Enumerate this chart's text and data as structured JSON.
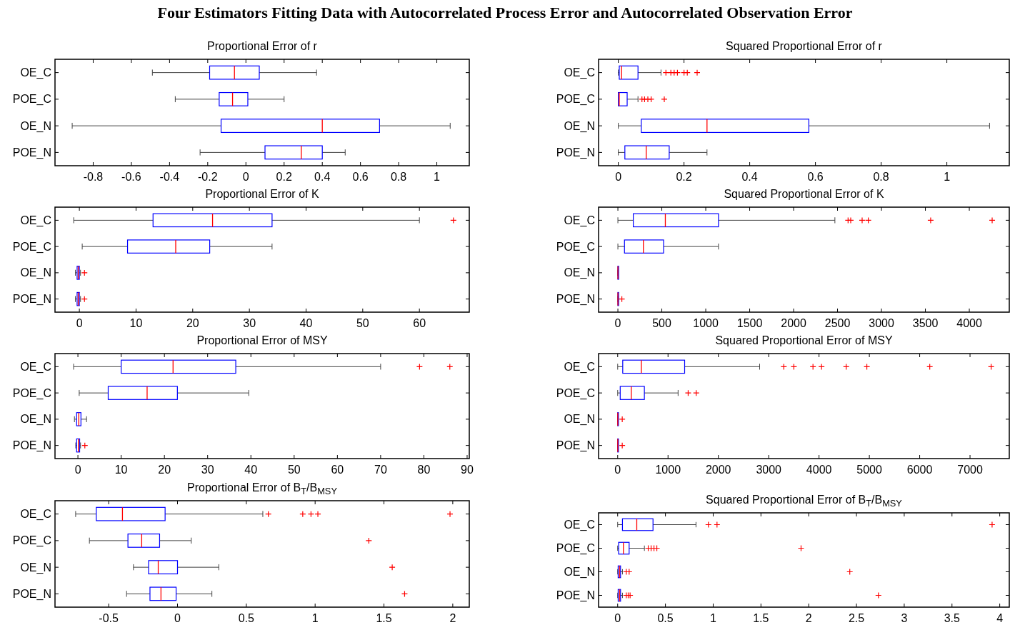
{
  "chart_data": [
    {
      "type": "box",
      "title": "Proportional Error of r",
      "annotations": [
        "Four Estimators Fitting Data with Autocorrelated Process Error and Autocorrelated Observation Error"
      ],
      "orientation": "horizontal",
      "categories": [
        "OE_C",
        "POE_C",
        "OE_N",
        "POE_N"
      ],
      "color": "#0000ff",
      "marker": "cross",
      "xlim": [
        -1.0,
        1.17
      ],
      "xticks": [
        -0.8,
        -0.6,
        -0.4,
        -0.2,
        0,
        0.2,
        0.4,
        0.6,
        0.8,
        1
      ],
      "boxes": [
        {
          "low": -0.49,
          "q1": -0.19,
          "median": -0.06,
          "q3": 0.07,
          "high": 0.37
        },
        {
          "low": -0.37,
          "q1": -0.14,
          "median": -0.07,
          "q3": 0.01,
          "high": 0.2
        },
        {
          "low": -0.91,
          "q1": -0.13,
          "median": 0.4,
          "q3": 0.7,
          "high": 1.07
        },
        {
          "low": -0.24,
          "q1": 0.1,
          "median": 0.29,
          "q3": 0.4,
          "high": 0.52
        }
      ]
    },
    {
      "type": "box",
      "title": "Squared Proportional Error of r",
      "orientation": "horizontal",
      "categories": [
        "OE_C",
        "POE_C",
        "OE_N",
        "POE_N"
      ],
      "color": "#0000ff",
      "marker": "cross",
      "xlim": [
        -0.06,
        1.19
      ],
      "xticks": [
        0,
        0.2,
        0.4,
        0.6,
        0.8,
        1
      ],
      "boxes": [
        {
          "low": 0,
          "q1": 0.003,
          "median": 0.01,
          "q3": 0.06,
          "high": 0.13,
          "outliers": [
            0.145,
            0.16,
            0.17,
            0.18,
            0.2,
            0.21,
            0.24
          ]
        },
        {
          "low": 0,
          "q1": 0,
          "median": 0.003,
          "q3": 0.027,
          "high": 0.06,
          "outliers": [
            0.072,
            0.08,
            0.09,
            0.1,
            0.14
          ]
        },
        {
          "low": 0,
          "q1": 0.07,
          "median": 0.27,
          "q3": 0.58,
          "high": 1.13
        },
        {
          "low": 0,
          "q1": 0.02,
          "median": 0.085,
          "q3": 0.155,
          "high": 0.27
        }
      ]
    },
    {
      "type": "box",
      "title": "Proportional Error of K",
      "orientation": "horizontal",
      "categories": [
        "OE_C",
        "POE_C",
        "OE_N",
        "POE_N"
      ],
      "color": "#0000ff",
      "marker": "cross",
      "xlim": [
        -4.3,
        68.8
      ],
      "xticks": [
        0,
        10,
        20,
        30,
        40,
        50,
        60
      ],
      "boxes": [
        {
          "low": -1,
          "q1": 13,
          "median": 23.5,
          "q3": 34,
          "high": 60,
          "outliers": [
            66
          ]
        },
        {
          "low": 0.5,
          "q1": 8.5,
          "median": 17,
          "q3": 23,
          "high": 34
        },
        {
          "low": -0.7,
          "q1": -0.4,
          "median": -0.2,
          "q3": 0,
          "high": 0.2,
          "outliers": [
            0.9
          ]
        },
        {
          "low": -0.7,
          "q1": -0.4,
          "median": -0.2,
          "q3": 0,
          "high": 0.2,
          "outliers": [
            0.9
          ]
        }
      ]
    },
    {
      "type": "box",
      "title": "Squared Proportional Error of K",
      "orientation": "horizontal",
      "categories": [
        "OE_C",
        "POE_C",
        "OE_N",
        "POE_N"
      ],
      "color": "#0000ff",
      "marker": "cross",
      "xlim": [
        -220,
        4455
      ],
      "xticks": [
        0,
        500,
        1000,
        1500,
        2000,
        2500,
        3000,
        3500,
        4000
      ],
      "boxes": [
        {
          "low": 0,
          "q1": 175,
          "median": 540,
          "q3": 1145,
          "high": 2470,
          "outliers": [
            2620,
            2650,
            2780,
            2850,
            3560,
            4260
          ]
        },
        {
          "low": 0,
          "q1": 75,
          "median": 290,
          "q3": 520,
          "high": 1145
        },
        {
          "low": 0,
          "q1": 0,
          "median": 0,
          "q3": 1,
          "high": 2
        },
        {
          "low": 0,
          "q1": 0,
          "median": 0,
          "q3": 1,
          "high": 5,
          "outliers": [
            45
          ]
        }
      ]
    },
    {
      "type": "box",
      "title": "Proportional Error of MSY",
      "orientation": "horizontal",
      "categories": [
        "OE_C",
        "POE_C",
        "OE_N",
        "POE_N"
      ],
      "color": "#0000ff",
      "marker": "cross",
      "xlim": [
        -5.3,
        90.5
      ],
      "xticks": [
        0,
        10,
        20,
        30,
        40,
        50,
        60,
        70,
        80,
        90
      ],
      "boxes": [
        {
          "low": -1,
          "q1": 10,
          "median": 22,
          "q3": 36.5,
          "high": 70,
          "outliers": [
            79,
            86
          ]
        },
        {
          "low": 0.3,
          "q1": 7,
          "median": 16,
          "q3": 23,
          "high": 39.5
        },
        {
          "low": -0.8,
          "q1": -0.3,
          "median": 0.2,
          "q3": 0.7,
          "high": 2
        },
        {
          "low": -0.5,
          "q1": -0.3,
          "median": 0.1,
          "q3": 0.4,
          "high": 0.6,
          "outliers": [
            1.6
          ]
        }
      ]
    },
    {
      "type": "box",
      "title": "Squared Proportional Error of MSY",
      "orientation": "horizontal",
      "categories": [
        "OE_C",
        "POE_C",
        "OE_N",
        "POE_N"
      ],
      "color": "#0000ff",
      "marker": "cross",
      "xlim": [
        -380,
        7780
      ],
      "xticks": [
        0,
        1000,
        2000,
        3000,
        4000,
        5000,
        6000,
        7000
      ],
      "boxes": [
        {
          "low": 0,
          "q1": 100,
          "median": 470,
          "q3": 1330,
          "high": 2820,
          "outliers": [
            3300,
            3500,
            3880,
            4050,
            4540,
            4950,
            6200,
            7420
          ]
        },
        {
          "low": 0,
          "q1": 50,
          "median": 270,
          "q3": 530,
          "high": 1200,
          "outliers": [
            1400,
            1560
          ]
        },
        {
          "low": 0,
          "q1": 0,
          "median": 1,
          "q3": 4,
          "high": 10,
          "outliers": [
            90
          ]
        },
        {
          "low": 0,
          "q1": 0,
          "median": 1,
          "q3": 4,
          "high": 10,
          "outliers": [
            90
          ]
        }
      ]
    },
    {
      "type": "box",
      "title": "Proportional Error of B$_{T}$/B$_{MSY}$",
      "orientation": "horizontal",
      "categories": [
        "OE_C",
        "POE_C",
        "OE_N",
        "POE_N"
      ],
      "color": "#0000ff",
      "marker": "cross",
      "xlim": [
        -0.89,
        2.12
      ],
      "xticks": [
        -0.5,
        0,
        0.5,
        1,
        1.5,
        2
      ],
      "boxes": [
        {
          "low": -0.74,
          "q1": -0.59,
          "median": -0.4,
          "q3": -0.09,
          "high": 0.62,
          "outliers": [
            0.66,
            0.91,
            0.97,
            1.02,
            1.98
          ]
        },
        {
          "low": -0.64,
          "q1": -0.36,
          "median": -0.26,
          "q3": -0.13,
          "high": 0.1,
          "outliers": [
            1.39
          ]
        },
        {
          "low": -0.32,
          "q1": -0.21,
          "median": -0.14,
          "q3": 0,
          "high": 0.3,
          "outliers": [
            1.56
          ]
        },
        {
          "low": -0.37,
          "q1": -0.2,
          "median": -0.12,
          "q3": -0.01,
          "high": 0.25,
          "outliers": [
            1.65
          ]
        }
      ]
    },
    {
      "type": "box",
      "title": "Squared Proportional Error of B$_{T}$/B$_{MSY}$",
      "orientation": "horizontal",
      "categories": [
        "OE_C",
        "POE_C",
        "OE_N",
        "POE_N"
      ],
      "color": "#0000ff",
      "marker": "cross",
      "xlim": [
        -0.2,
        4.1
      ],
      "xticks": [
        0,
        0.5,
        1,
        1.5,
        2,
        2.5,
        3,
        3.5,
        4
      ],
      "boxes": [
        {
          "low": 0,
          "q1": 0.05,
          "median": 0.2,
          "q3": 0.37,
          "high": 0.82,
          "outliers": [
            0.95,
            1.04,
            3.92
          ]
        },
        {
          "low": 0,
          "q1": 0.01,
          "median": 0.06,
          "q3": 0.12,
          "high": 0.28,
          "outliers": [
            0.32,
            0.35,
            0.38,
            0.41,
            1.92
          ]
        },
        {
          "low": 0,
          "q1": 0.005,
          "median": 0.02,
          "q3": 0.03,
          "high": 0.05,
          "outliers": [
            0.09,
            0.12,
            2.43
          ]
        },
        {
          "low": 0,
          "q1": 0.005,
          "median": 0.02,
          "q3": 0.03,
          "high": 0.05,
          "outliers": [
            0.09,
            0.11,
            0.13,
            2.73
          ]
        }
      ]
    }
  ]
}
